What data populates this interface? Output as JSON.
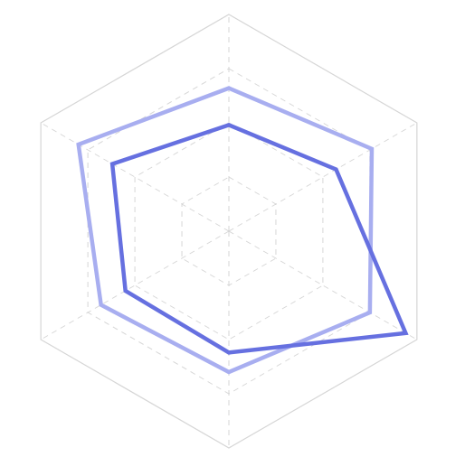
{
  "chart_data": {
    "type": "radar",
    "title": "",
    "axes_count": 6,
    "rmax": 100,
    "levels": [
      25,
      50,
      75,
      100
    ],
    "grid": true,
    "legend": "none",
    "series": [
      {
        "color": "#a8aef0",
        "values": [
          66,
          76,
          75,
          65,
          68,
          80
        ]
      },
      {
        "color": "#6670e0",
        "values": [
          49,
          57,
          94,
          56,
          55,
          62
        ]
      }
    ]
  }
}
